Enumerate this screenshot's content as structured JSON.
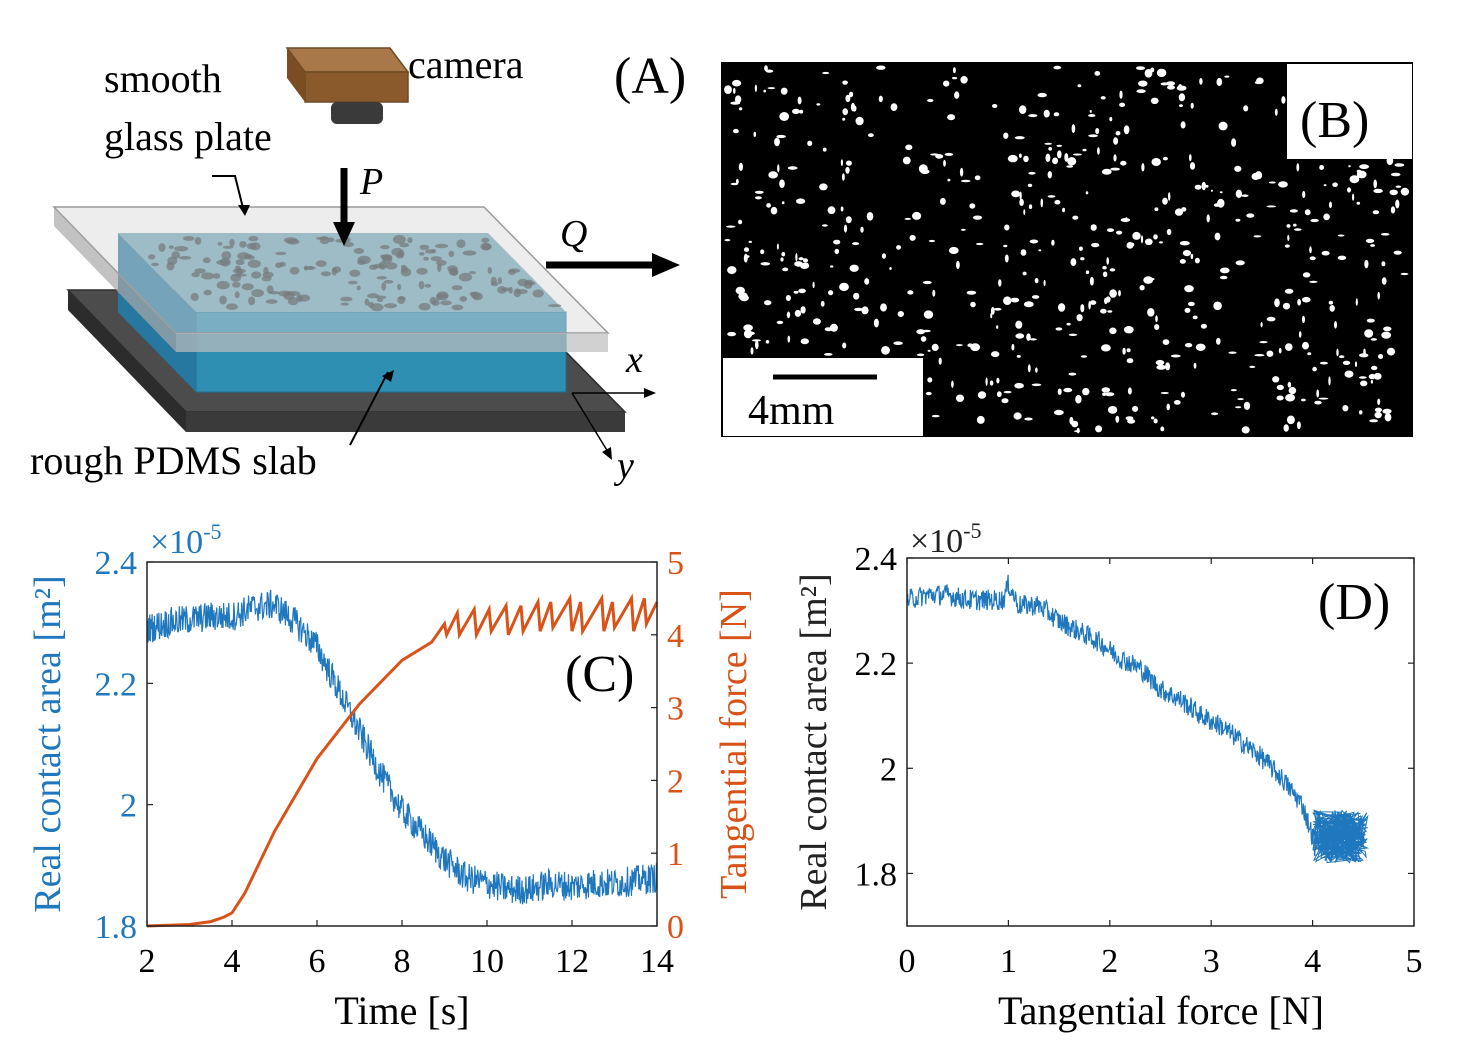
{
  "figure": {
    "panel_a": {
      "label": "(A)",
      "camera_label": "camera",
      "plate_label_line1": "smooth",
      "plate_label_line2": "glass plate",
      "slab_label": "rough PDMS slab",
      "normal_force_label": "P",
      "tangential_force_label": "Q",
      "axis_x_label": "x",
      "axis_y_label": "y"
    },
    "panel_b": {
      "label": "(B)",
      "scale_bar_label": "4mm",
      "colors": {
        "background": "#000000",
        "spots": "#ffffff"
      }
    },
    "colors": {
      "blue": "#1f77bd",
      "orange": "#d95319",
      "glass": "#c8c8c8",
      "pdms": "#3b8fb5",
      "base": "#4a4a4a",
      "camera_body": "#9a6a3a",
      "camera_lens": "#3a3a3a"
    }
  },
  "chart_data": [
    {
      "id": "C",
      "label": "(C)",
      "type": "line",
      "xlabel": "Time [s]",
      "xlim": [
        2,
        14
      ],
      "xticks": [
        "2",
        "4",
        "6",
        "8",
        "10",
        "12",
        "14"
      ],
      "ylabel_left": "Real contact area [m²]",
      "ylim_left": [
        1.8,
        2.4
      ],
      "yticks_left": [
        "1.8",
        "2",
        "2.2",
        "2.4"
      ],
      "ylabel_right": "Tangential force [N]",
      "ylim_right": [
        0,
        5
      ],
      "yticks_right": [
        "0",
        "1",
        "2",
        "3",
        "4",
        "5"
      ],
      "exponent_label": "×10",
      "exponent_power": "-5",
      "series": [
        {
          "name": "Real contact area",
          "axis": "left",
          "x": [
            2,
            2.5,
            3,
            3.5,
            4,
            4.5,
            5,
            5.5,
            6,
            6.5,
            7,
            7.5,
            8,
            8.5,
            9,
            9.5,
            10,
            10.5,
            11,
            11.5,
            12,
            12.5,
            13,
            13.5,
            14
          ],
          "y": [
            2.29,
            2.3,
            2.305,
            2.31,
            2.31,
            2.325,
            2.33,
            2.3,
            2.26,
            2.19,
            2.12,
            2.05,
            1.99,
            1.95,
            1.91,
            1.88,
            1.87,
            1.86,
            1.86,
            1.87,
            1.865,
            1.87,
            1.87,
            1.875,
            1.88
          ]
        },
        {
          "name": "Tangential force",
          "axis": "right",
          "x": [
            2,
            3,
            3.5,
            3.8,
            4,
            4.3,
            5,
            6,
            7,
            8,
            8.7,
            9.0,
            9.05,
            9.3,
            9.35,
            9.7,
            9.75,
            10.05,
            10.1,
            10.45,
            10.5,
            10.8,
            10.85,
            11.2,
            11.25,
            11.5,
            11.55,
            11.95,
            12.0,
            12.2,
            12.25,
            12.7,
            12.75,
            12.95,
            13.0,
            13.4,
            13.45,
            13.7,
            13.75,
            14
          ],
          "y": [
            0.0,
            0.02,
            0.06,
            0.12,
            0.18,
            0.45,
            1.3,
            2.3,
            3.05,
            3.65,
            3.9,
            4.15,
            4.0,
            4.3,
            4.0,
            4.35,
            4.0,
            4.35,
            4.05,
            4.4,
            4.0,
            4.4,
            4.05,
            4.45,
            4.05,
            4.45,
            4.1,
            4.5,
            4.05,
            4.45,
            4.05,
            4.5,
            4.05,
            4.45,
            4.1,
            4.5,
            4.05,
            4.5,
            4.15,
            4.45
          ]
        }
      ]
    },
    {
      "id": "D",
      "label": "(D)",
      "type": "line",
      "xlabel": "Tangential force [N]",
      "xlim": [
        0,
        5
      ],
      "xticks": [
        "0",
        "1",
        "2",
        "3",
        "4",
        "5"
      ],
      "ylabel": "Real contact area [m²]",
      "ylim": [
        1.7,
        2.4
      ],
      "yticks": [
        "1.8",
        "2",
        "2.2",
        "2.4"
      ],
      "exponent_label": "×10",
      "exponent_power": "-5",
      "series": [
        {
          "name": "Real contact area vs tangential force",
          "x": [
            0,
            0.2,
            0.4,
            0.6,
            0.8,
            0.95,
            1.0,
            1.1,
            1.3,
            1.5,
            1.7,
            1.9,
            2.1,
            2.3,
            2.5,
            2.7,
            2.9,
            3.1,
            3.3,
            3.5,
            3.7,
            3.9,
            4.0,
            4.1,
            4.2,
            4.3,
            4.4,
            4.5
          ],
          "y": [
            2.32,
            2.33,
            2.33,
            2.32,
            2.32,
            2.32,
            2.35,
            2.31,
            2.31,
            2.28,
            2.26,
            2.24,
            2.21,
            2.19,
            2.15,
            2.13,
            2.1,
            2.08,
            2.05,
            2.02,
            1.98,
            1.93,
            1.87,
            1.86,
            1.88,
            1.87,
            1.88,
            1.86
          ]
        }
      ]
    }
  ]
}
